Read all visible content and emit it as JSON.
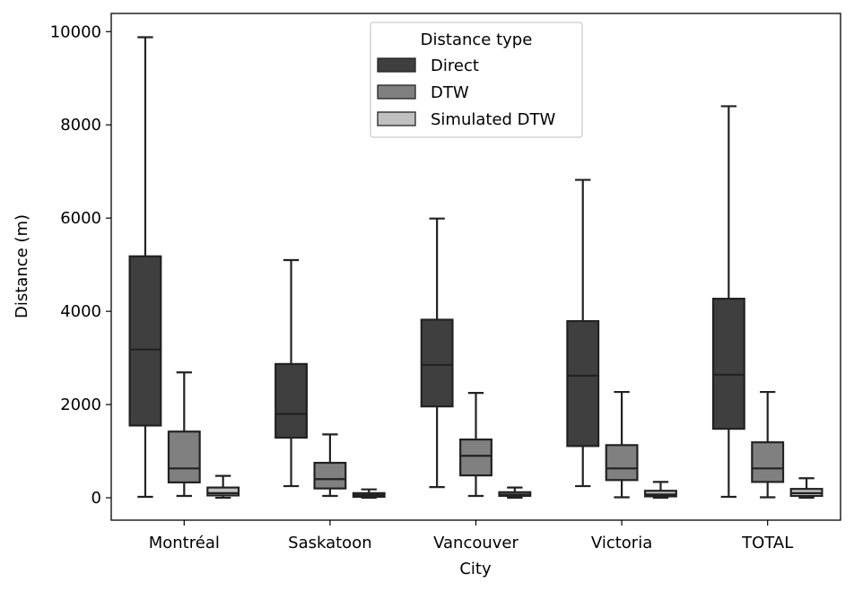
{
  "chart_data": {
    "type": "box",
    "title": "",
    "xlabel": "City",
    "ylabel": "Distance (m)",
    "ylim": [
      -480,
      10390
    ],
    "yticks": [
      0,
      2000,
      4000,
      6000,
      8000,
      10000
    ],
    "grid": false,
    "legend_position": "top-center",
    "categories": [
      "Montréal",
      "Saskatoon",
      "Vancouver",
      "Victoria",
      "TOTAL"
    ],
    "legend": {
      "title": "Distance type",
      "entries": [
        "Direct",
        "DTW",
        "Simulated DTW"
      ]
    },
    "series": [
      {
        "name": "Direct",
        "color": "#3f3f3f",
        "boxes": [
          {
            "whisker_low": 20,
            "q1": 1550,
            "median": 3180,
            "q3": 5180,
            "whisker_high": 9880
          },
          {
            "whisker_low": 250,
            "q1": 1290,
            "median": 1800,
            "q3": 2870,
            "whisker_high": 5100
          },
          {
            "whisker_low": 230,
            "q1": 1960,
            "median": 2850,
            "q3": 3820,
            "whisker_high": 5990
          },
          {
            "whisker_low": 250,
            "q1": 1110,
            "median": 2620,
            "q3": 3790,
            "whisker_high": 6820
          },
          {
            "whisker_low": 20,
            "q1": 1480,
            "median": 2640,
            "q3": 4270,
            "whisker_high": 8400
          }
        ]
      },
      {
        "name": "DTW",
        "color": "#808080",
        "boxes": [
          {
            "whisker_low": 40,
            "q1": 330,
            "median": 630,
            "q3": 1420,
            "whisker_high": 2690
          },
          {
            "whisker_low": 40,
            "q1": 200,
            "median": 400,
            "q3": 750,
            "whisker_high": 1360
          },
          {
            "whisker_low": 40,
            "q1": 480,
            "median": 900,
            "q3": 1250,
            "whisker_high": 2250
          },
          {
            "whisker_low": 10,
            "q1": 380,
            "median": 630,
            "q3": 1130,
            "whisker_high": 2270
          },
          {
            "whisker_low": 10,
            "q1": 340,
            "median": 630,
            "q3": 1190,
            "whisker_high": 2270
          }
        ]
      },
      {
        "name": "Simulated DTW",
        "color": "#c0c0c0",
        "boxes": [
          {
            "whisker_low": 0,
            "q1": 50,
            "median": 100,
            "q3": 220,
            "whisker_high": 470
          },
          {
            "whisker_low": 0,
            "q1": 20,
            "median": 60,
            "q3": 100,
            "whisker_high": 180
          },
          {
            "whisker_low": 0,
            "q1": 40,
            "median": 70,
            "q3": 120,
            "whisker_high": 220
          },
          {
            "whisker_low": 0,
            "q1": 30,
            "median": 70,
            "q3": 150,
            "whisker_high": 340
          },
          {
            "whisker_low": 0,
            "q1": 40,
            "median": 100,
            "q3": 190,
            "whisker_high": 420
          }
        ]
      }
    ]
  }
}
